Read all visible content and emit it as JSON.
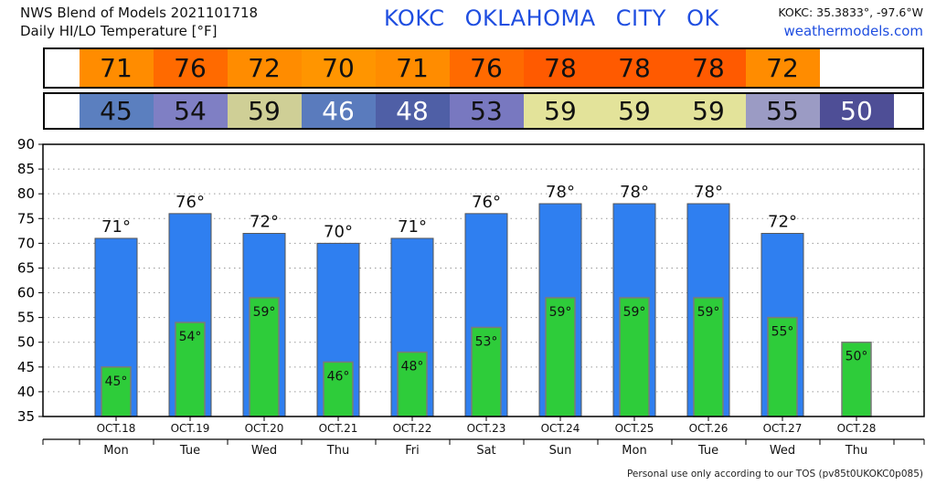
{
  "header": {
    "line1": "NWS Blend of Models 2021101718",
    "line2": "Daily HI/LO Temperature [°F]",
    "station": "KOKC  OKLAHOMA CITY  OK",
    "coords": "KOKC: 35.3833°, -97.6°W",
    "site": "weathermodels.com"
  },
  "footer": "Personal use only according to our TOS (pv85t0UKOKC0p085)",
  "colors": {
    "hi_bar": "#2f7ff0",
    "lo_bar": "#2ecc3a",
    "hi_cells": [
      "#ff8c00",
      "#ff6a00",
      "#ff8c00",
      "#ff9500",
      "#ff8c00",
      "#ff6a00",
      "#ff5a00",
      "#ff5a00",
      "#ff5a00",
      "#ff8c00"
    ],
    "lo_cells": [
      "#5b7fbf",
      "#7f7fc4",
      "#cfcf96",
      "#5a7bbd",
      "#4f5fa6",
      "#7878c0",
      "#e3e39a",
      "#e3e39a",
      "#e3e39a",
      "#9b9bc4",
      "#4e4e96"
    ]
  },
  "chart_data": {
    "type": "bar",
    "categories": [
      "OCT.18",
      "OCT.19",
      "OCT.20",
      "OCT.21",
      "OCT.22",
      "OCT.23",
      "OCT.24",
      "OCT.25",
      "OCT.26",
      "OCT.27",
      "OCT.28"
    ],
    "days": [
      "Mon",
      "Tue",
      "Wed",
      "Thu",
      "Fri",
      "Sat",
      "Sun",
      "Mon",
      "Tue",
      "Wed",
      "Thu"
    ],
    "series": [
      {
        "values": [
          71,
          76,
          72,
          70,
          71,
          76,
          78,
          78,
          78,
          72,
          null
        ]
      },
      {
        "values": [
          45,
          54,
          59,
          46,
          48,
          53,
          59,
          59,
          59,
          55,
          50
        ]
      }
    ],
    "hi_labels": [
      "71°",
      "76°",
      "72°",
      "70°",
      "71°",
      "76°",
      "78°",
      "78°",
      "78°",
      "72°",
      ""
    ],
    "lo_labels": [
      "45°",
      "54°",
      "59°",
      "46°",
      "48°",
      "53°",
      "59°",
      "59°",
      "59°",
      "55°",
      "50°"
    ],
    "hi_strip": [
      "71",
      "76",
      "72",
      "70",
      "71",
      "76",
      "78",
      "78",
      "78",
      "72"
    ],
    "lo_strip": [
      "45",
      "54",
      "59",
      "46",
      "48",
      "53",
      "59",
      "59",
      "59",
      "55",
      "50"
    ],
    "yticks": [
      "35",
      "40",
      "45",
      "50",
      "55",
      "60",
      "65",
      "70",
      "75",
      "80",
      "85",
      "90"
    ],
    "ylim": [
      35,
      90
    ],
    "grid": true
  }
}
